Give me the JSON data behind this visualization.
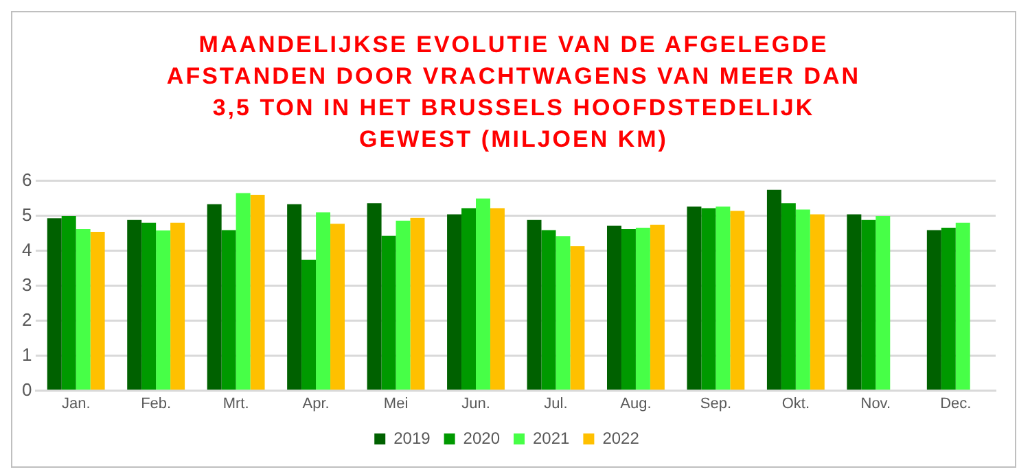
{
  "chart_data": {
    "type": "bar",
    "title": "MAANDELIJKSE EVOLUTIE VAN DE AFGELEGDE AFSTANDEN DOOR VRACHTWAGENS VAN MEER DAN 3,5 TON IN HET BRUSSELS HOOFDSTEDELIJK GEWEST (MILJOEN  KM)",
    "categories": [
      "Jan.",
      "Feb.",
      "Mrt.",
      "Apr.",
      "Mei",
      "Jun.",
      "Jul.",
      "Aug.",
      "Sep.",
      "Okt.",
      "Nov.",
      "Dec."
    ],
    "series": [
      {
        "name": "2019",
        "color": "#006100",
        "values": [
          4.93,
          4.88,
          5.33,
          5.33,
          5.36,
          5.04,
          4.88,
          4.72,
          5.26,
          5.74,
          5.04,
          4.59
        ]
      },
      {
        "name": "2020",
        "color": "#009900",
        "values": [
          4.99,
          4.8,
          4.59,
          3.74,
          4.43,
          5.22,
          4.59,
          4.62,
          5.22,
          5.36,
          4.88,
          4.66
        ]
      },
      {
        "name": "2021",
        "color": "#47ff47",
        "values": [
          4.62,
          4.58,
          5.65,
          5.1,
          4.86,
          5.49,
          4.42,
          4.66,
          5.26,
          5.18,
          4.99,
          4.8
        ]
      },
      {
        "name": "2022",
        "color": "#ffc000",
        "values": [
          4.54,
          4.8,
          5.6,
          4.77,
          4.94,
          5.22,
          4.13,
          4.74,
          5.14,
          5.04,
          null,
          null
        ]
      }
    ],
    "ylim": [
      0,
      6
    ],
    "yticks": [
      0,
      1,
      2,
      3,
      4,
      5,
      6
    ],
    "grid": "y",
    "legend": "bottom"
  }
}
